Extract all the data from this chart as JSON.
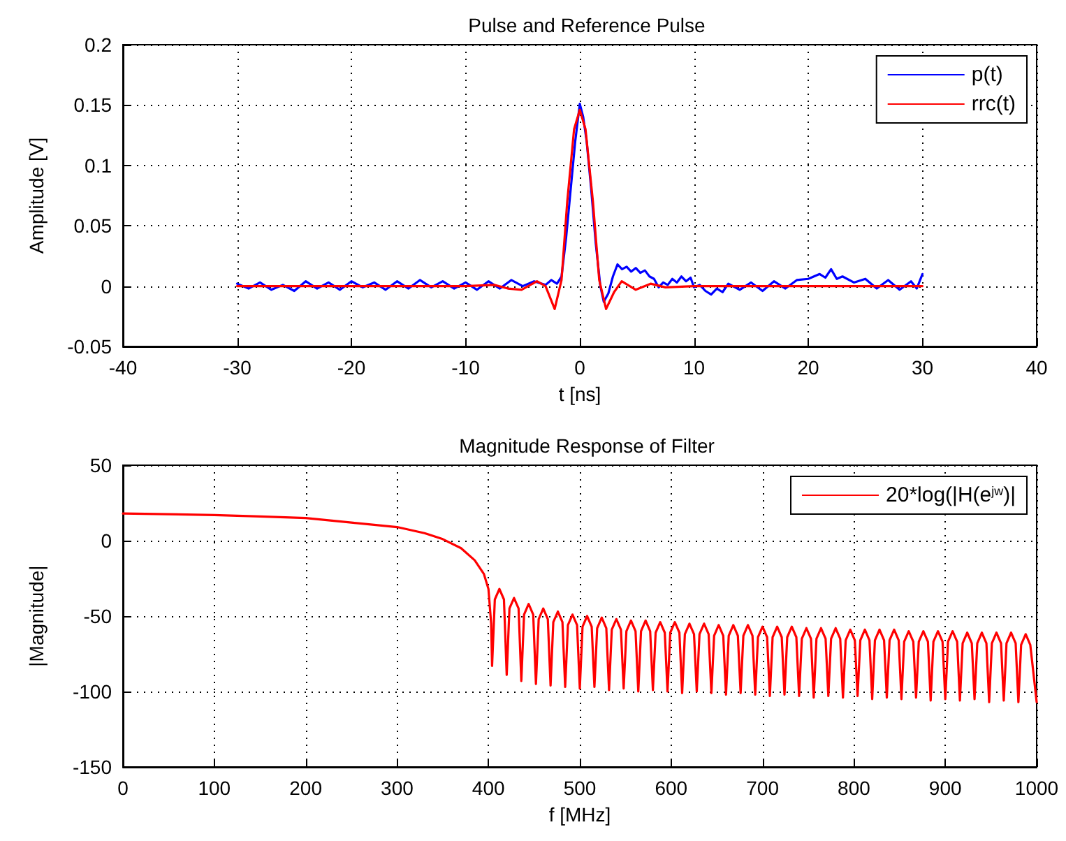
{
  "chart_data": [
    {
      "type": "line",
      "title": "Pulse and Reference Pulse",
      "xlabel": "t [ns]",
      "ylabel": "Amplitude [V]",
      "xlim": [
        -40,
        40
      ],
      "xticks": [
        -40,
        -30,
        -20,
        -10,
        0,
        10,
        20,
        30,
        40
      ],
      "ylim": [
        -0.05,
        0.2
      ],
      "yticks": [
        -0.05,
        0,
        0.05,
        0.1,
        0.15,
        0.2
      ],
      "grid": true,
      "legend": "top right",
      "marker": "none",
      "line_style": "solid",
      "series": [
        {
          "name": "p(t)",
          "color": "#0000ff",
          "x": [
            -30,
            -29,
            -28,
            -27,
            -26,
            -25,
            -24,
            -23,
            -22,
            -21,
            -20,
            -19,
            -18,
            -17,
            -16,
            -15,
            -14,
            -13,
            -12,
            -11,
            -10,
            -9,
            -8,
            -7,
            -6,
            -5,
            -4,
            -3,
            -2.5,
            -2,
            -1.6,
            -1.2,
            -0.8,
            -0.4,
            0,
            0.3,
            0.6,
            1,
            1.4,
            1.8,
            2.1,
            2.5,
            2.9,
            3.3,
            3.7,
            4.1,
            4.5,
            4.9,
            5.3,
            5.7,
            6.1,
            6.5,
            6.9,
            7.3,
            7.7,
            8.1,
            8.5,
            8.9,
            9.3,
            9.7,
            10,
            10.5,
            11,
            11.5,
            12,
            12.5,
            13,
            14,
            15,
            16,
            17,
            18,
            19,
            20,
            20.5,
            21,
            21.5,
            22,
            22.5,
            23,
            24,
            25,
            26,
            27,
            28,
            29,
            29.5,
            30
          ],
          "values": [
            0.002,
            -0.002,
            0.003,
            -0.003,
            0.001,
            -0.004,
            0.004,
            -0.002,
            0.003,
            -0.003,
            0.004,
            -0.001,
            0.003,
            -0.003,
            0.004,
            -0.002,
            0.005,
            -0.001,
            0.004,
            -0.002,
            0.003,
            -0.003,
            0.004,
            -0.002,
            0.005,
            0,
            0.004,
            0.001,
            0.005,
            0.002,
            0.008,
            0.04,
            0.08,
            0.12,
            0.151,
            0.14,
            0.12,
            0.08,
            0.035,
            0,
            -0.013,
            -0.006,
            0.008,
            0.018,
            0.014,
            0.016,
            0.012,
            0.015,
            0.011,
            0.013,
            0.008,
            0.006,
            -0.001,
            0.003,
            0.001,
            0.006,
            0.003,
            0.008,
            0.004,
            0.007,
            -0.001,
            0.001,
            -0.004,
            -0.007,
            -0.002,
            -0.005,
            0.002,
            -0.003,
            0.003,
            -0.004,
            0.004,
            -0.002,
            0.005,
            0.006,
            0.008,
            0.01,
            0.007,
            0.014,
            0.006,
            0.008,
            0.003,
            0.006,
            -0.002,
            0.005,
            -0.003,
            0.004,
            -0.002,
            0.01
          ]
        },
        {
          "name": "rrc(t)",
          "color": "#ff0000",
          "x": [
            -30,
            -10,
            -7.5,
            -6.3,
            -5.1,
            -3.75,
            -3,
            -2.2,
            -1.6,
            -1.1,
            -0.5,
            0,
            0.5,
            1.15,
            1.7,
            2.3,
            3,
            3.67,
            4.9,
            6.2,
            7.5,
            10,
            30
          ],
          "values": [
            0,
            0,
            0.001,
            -0.002,
            -0.003,
            0.004,
            0,
            -0.019,
            0.005,
            0.07,
            0.13,
            0.146,
            0.13,
            0.07,
            0.005,
            -0.019,
            -0.005,
            0.004,
            -0.003,
            0.002,
            -0.001,
            0,
            0
          ]
        }
      ]
    },
    {
      "type": "line",
      "title": "Magnitude Response of Filter",
      "xlabel": "f [MHz]",
      "ylabel": "|Magnitude|",
      "xlim": [
        0,
        1000
      ],
      "xticks": [
        0,
        100,
        200,
        300,
        400,
        500,
        600,
        700,
        800,
        900,
        1000
      ],
      "ylim": [
        -150,
        50
      ],
      "yticks": [
        -150,
        -100,
        -50,
        0,
        50
      ],
      "grid": true,
      "legend": "top right",
      "marker": "none",
      "line_style": "solid",
      "series": [
        {
          "name": "20*log(|H(e$^{jw}$)|",
          "color": "#ff0000",
          "x": [
            0,
            100,
            150,
            200,
            250,
            300,
            330,
            350,
            370,
            385,
            395,
            400,
            403,
            404,
            407,
            412,
            417,
            420,
            423,
            428,
            433,
            436,
            439,
            444,
            449,
            452,
            455,
            460,
            465,
            468,
            471,
            476,
            481,
            484,
            487,
            492,
            497,
            500,
            503,
            508,
            513,
            516,
            519,
            524,
            529,
            532,
            535,
            540,
            545,
            548,
            551,
            556,
            561,
            564,
            567,
            572,
            577,
            580,
            583,
            588,
            593,
            596,
            599,
            604,
            609,
            612,
            615,
            620,
            625,
            628,
            631,
            636,
            641,
            644,
            647,
            652,
            657,
            660,
            663,
            668,
            673,
            676,
            679,
            684,
            689,
            692,
            695,
            700,
            705,
            708,
            711,
            716,
            721,
            724,
            727,
            732,
            737,
            740,
            743,
            748,
            753,
            756,
            759,
            764,
            769,
            772,
            775,
            780,
            785,
            788,
            791,
            796,
            801,
            804,
            807,
            812,
            817,
            820,
            823,
            828,
            833,
            836,
            839,
            844,
            849,
            852,
            855,
            860,
            865,
            868,
            871,
            876,
            881,
            884,
            887,
            892,
            897,
            900,
            903,
            908,
            913,
            916,
            919,
            924,
            929,
            932,
            935,
            940,
            945,
            948,
            951,
            956,
            961,
            964,
            967,
            972,
            977,
            980,
            983,
            988,
            993,
            1000
          ],
          "values": [
            18,
            17,
            16,
            15,
            12,
            9,
            5,
            1,
            -5,
            -13,
            -22,
            -32,
            -55,
            -83,
            -39,
            -32,
            -39,
            -89,
            -45,
            -38,
            -45,
            -93,
            -49,
            -42,
            -49,
            -95,
            -52,
            -45,
            -52,
            -96,
            -54,
            -47,
            -54,
            -97,
            -56,
            -49,
            -56,
            -98,
            -57,
            -50,
            -57,
            -97,
            -58,
            -51,
            -58,
            -99,
            -59,
            -52,
            -59,
            -98,
            -60,
            -53,
            -60,
            -100,
            -60,
            -53,
            -60,
            -99,
            -61,
            -54,
            -61,
            -100,
            -61,
            -54,
            -61,
            -101,
            -62,
            -55,
            -62,
            -100,
            -62,
            -55,
            -62,
            -101,
            -63,
            -56,
            -63,
            -102,
            -63,
            -56,
            -63,
            -101,
            -63,
            -56,
            -63,
            -102,
            -64,
            -57,
            -64,
            -103,
            -64,
            -57,
            -64,
            -102,
            -64,
            -57,
            -64,
            -103,
            -65,
            -58,
            -65,
            -104,
            -65,
            -58,
            -65,
            -103,
            -65,
            -58,
            -65,
            -104,
            -66,
            -59,
            -66,
            -103,
            -66,
            -59,
            -66,
            -105,
            -66,
            -59,
            -66,
            -104,
            -66,
            -59,
            -66,
            -105,
            -67,
            -60,
            -67,
            -104,
            -67,
            -60,
            -67,
            -106,
            -67,
            -60,
            -67,
            -105,
            -67,
            -60,
            -67,
            -106,
            -68,
            -61,
            -68,
            -105,
            -68,
            -61,
            -68,
            -107,
            -68,
            -61,
            -68,
            -106,
            -68,
            -61,
            -68,
            -107,
            -69,
            -62,
            -69,
            -107
          ]
        }
      ]
    }
  ]
}
